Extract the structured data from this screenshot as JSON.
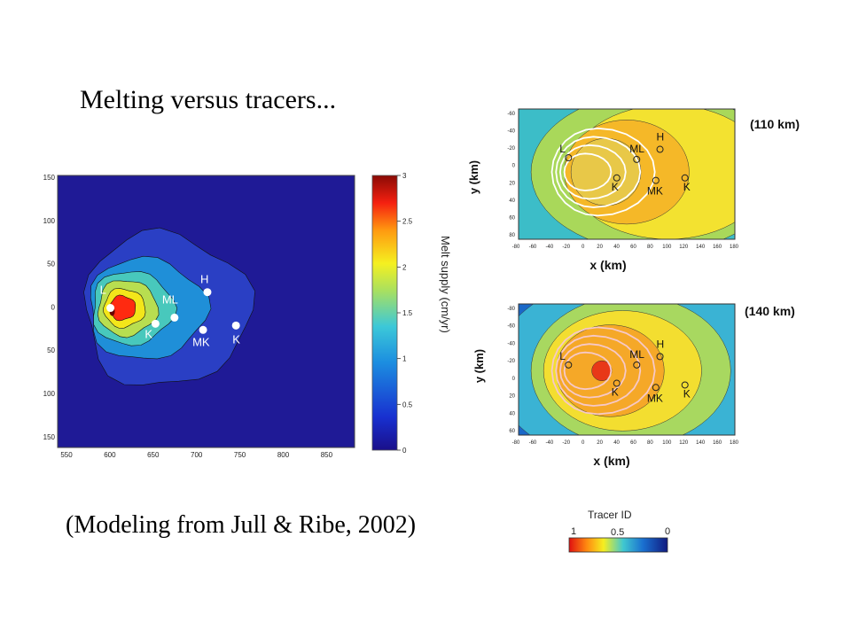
{
  "slide": {
    "title": "Melting versus tracers...",
    "citation": "(Modeling from Jull & Ribe, 2002)"
  },
  "chart_data": [
    {
      "type": "heatmap",
      "title": "",
      "xlabel": "",
      "ylabel": "",
      "x_ticks": [
        "550",
        "600",
        "650",
        "700",
        "750",
        "800",
        "850"
      ],
      "y_ticks": [
        "150",
        "100",
        "50",
        "0",
        "50",
        "100",
        "150"
      ],
      "colorbar": {
        "label": "Melt supply (cm/yr)",
        "ticks": [
          "0",
          "0.5",
          "1",
          "1.5",
          "2",
          "2.5",
          "3"
        ],
        "range": [
          0,
          3
        ]
      },
      "levels": [
        {
          "value": 0.5,
          "color": "#2a3fc4"
        },
        {
          "value": 1.0,
          "color": "#1f8fd8"
        },
        {
          "value": 1.5,
          "color": "#48c8bc"
        },
        {
          "value": 2.0,
          "color": "#b8de50"
        },
        {
          "value": 2.5,
          "color": "#f3e61a"
        },
        {
          "value": 3.0,
          "color": "#ff2a10"
        }
      ],
      "background_color": "#1f1a96",
      "stations": [
        {
          "label": "L",
          "x": 598,
          "y": 4
        },
        {
          "label": "ML",
          "x": 672,
          "y": -7
        },
        {
          "label": "H",
          "x": 710,
          "y": 22
        },
        {
          "label": "K",
          "x": 650,
          "y": -14
        },
        {
          "label": "MK",
          "x": 705,
          "y": -21
        },
        {
          "label": "K",
          "x": 743,
          "y": -16
        }
      ]
    },
    {
      "type": "heatmap",
      "annotation": "(110 km)",
      "xlabel": "x (km)",
      "ylabel": "y (km)",
      "x_ticks": [
        "-80",
        "-60",
        "-40",
        "-20",
        "0",
        "20",
        "40",
        "60",
        "80",
        "100",
        "120",
        "140",
        "160",
        "180"
      ],
      "y_ticks": [
        "-60",
        "-40",
        "-20",
        "0",
        "20",
        "40",
        "60",
        "80"
      ],
      "stations": [
        {
          "label": "L",
          "x": -20,
          "y": -12
        },
        {
          "label": "ML",
          "x": 62,
          "y": -10
        },
        {
          "label": "H",
          "x": 90,
          "y": -22
        },
        {
          "label": "K",
          "x": 38,
          "y": 12
        },
        {
          "label": "MK",
          "x": 85,
          "y": 15
        },
        {
          "label": "K",
          "x": 120,
          "y": 12
        }
      ]
    },
    {
      "type": "heatmap",
      "annotation": "(140 km)",
      "xlabel": "x (km)",
      "ylabel": "y (km)",
      "x_ticks": [
        "-80",
        "-60",
        "-40",
        "-20",
        "0",
        "20",
        "40",
        "60",
        "80",
        "100",
        "120",
        "140",
        "160",
        "180"
      ],
      "y_ticks": [
        "-80",
        "-60",
        "-40",
        "-20",
        "0",
        "20",
        "40",
        "60"
      ],
      "stations": [
        {
          "label": "L",
          "x": -20,
          "y": -12
        },
        {
          "label": "ML",
          "x": 62,
          "y": -12
        },
        {
          "label": "H",
          "x": 90,
          "y": -22
        },
        {
          "label": "K",
          "x": 38,
          "y": 10
        },
        {
          "label": "MK",
          "x": 85,
          "y": 15
        },
        {
          "label": "K",
          "x": 120,
          "y": 12
        }
      ]
    }
  ],
  "tracer_legend": {
    "title": "Tracer ID",
    "ticks": [
      "1",
      "0.5",
      "0"
    ]
  }
}
